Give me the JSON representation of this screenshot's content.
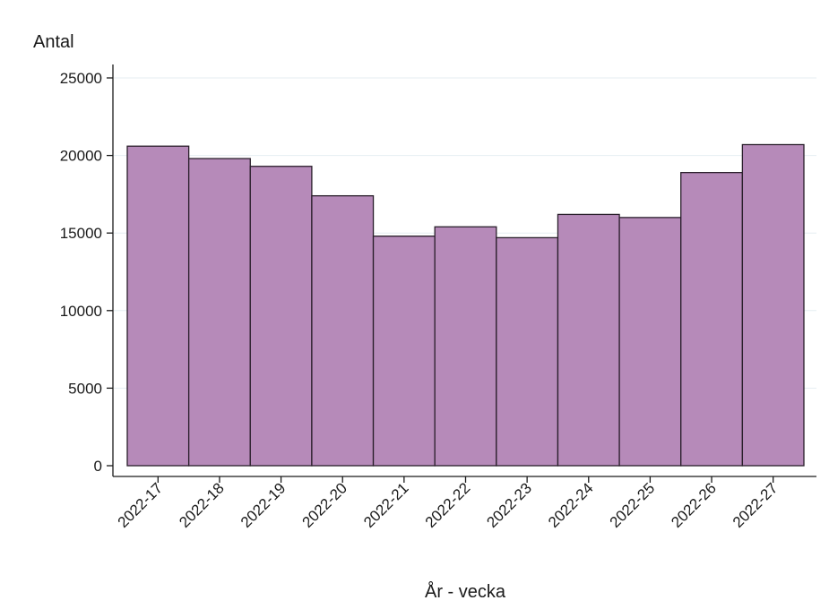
{
  "chart_data": {
    "type": "bar",
    "title": "",
    "xlabel": "År - vecka",
    "ylabel": "Antal",
    "categories": [
      "2022-17",
      "2022-18",
      "2022-19",
      "2022-20",
      "2022-21",
      "2022-22",
      "2022-23",
      "2022-24",
      "2022-25",
      "2022-26",
      "2022-27"
    ],
    "values": [
      20600,
      19800,
      19300,
      17400,
      14800,
      15400,
      14700,
      16200,
      16000,
      18900,
      20700
    ],
    "ylim": [
      0,
      25000
    ],
    "yticks": [
      0,
      5000,
      10000,
      15000,
      20000,
      25000
    ],
    "grid": true,
    "colors": {
      "bar_fill": "#b68ab9",
      "bar_stroke": "#2a1f2b",
      "grid": "#e6eef2",
      "axis": "#1a1a1a"
    }
  }
}
